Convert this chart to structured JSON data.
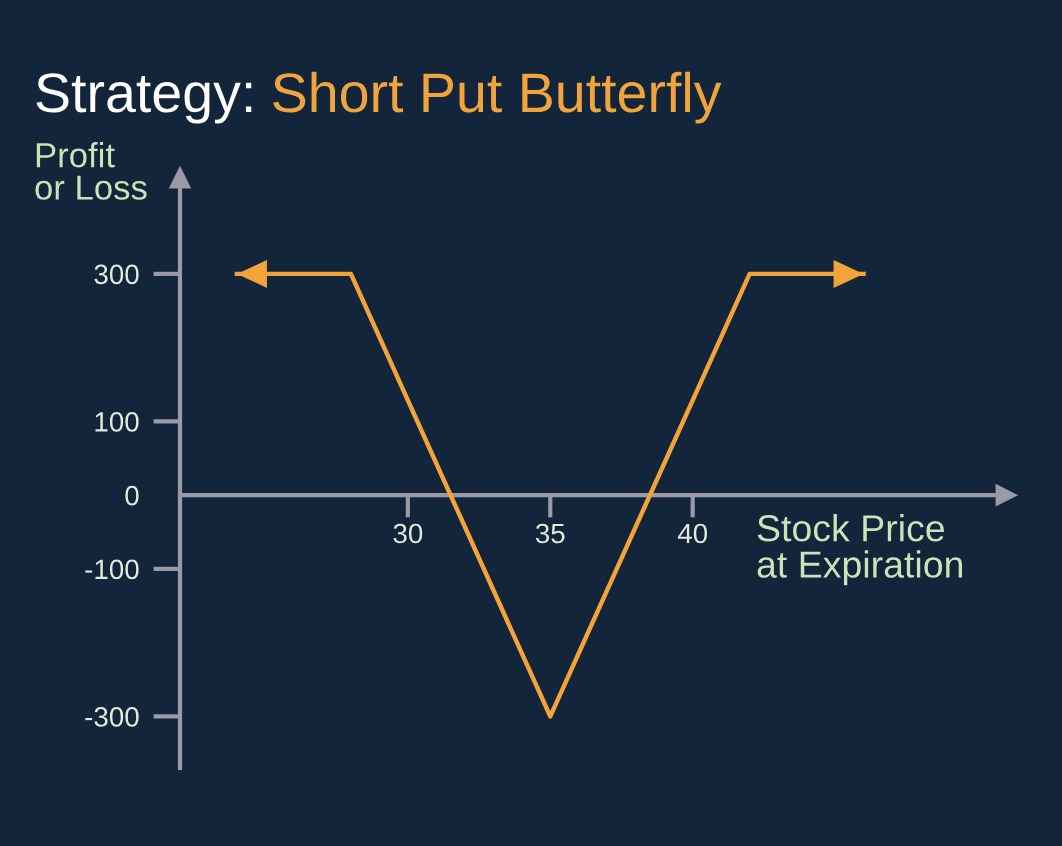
{
  "chart_data": {
    "type": "line",
    "title": "Strategy: Short Put Butterfly",
    "xlabel": "Stock Price\nat Expiration",
    "ylabel": "Profit\nor Loss",
    "x": [
      24,
      28,
      35,
      42,
      46
    ],
    "series": [
      {
        "color": "#f2a43a",
        "values": [
          300,
          300,
          -300,
          300,
          300
        ]
      }
    ],
    "xlim": [
      22,
      51
    ],
    "ylim": [
      -370,
      430
    ],
    "xticks": [
      30,
      35,
      40
    ],
    "yticks": [
      300,
      100,
      0,
      -100,
      -300
    ],
    "line_style": "solid"
  }
}
